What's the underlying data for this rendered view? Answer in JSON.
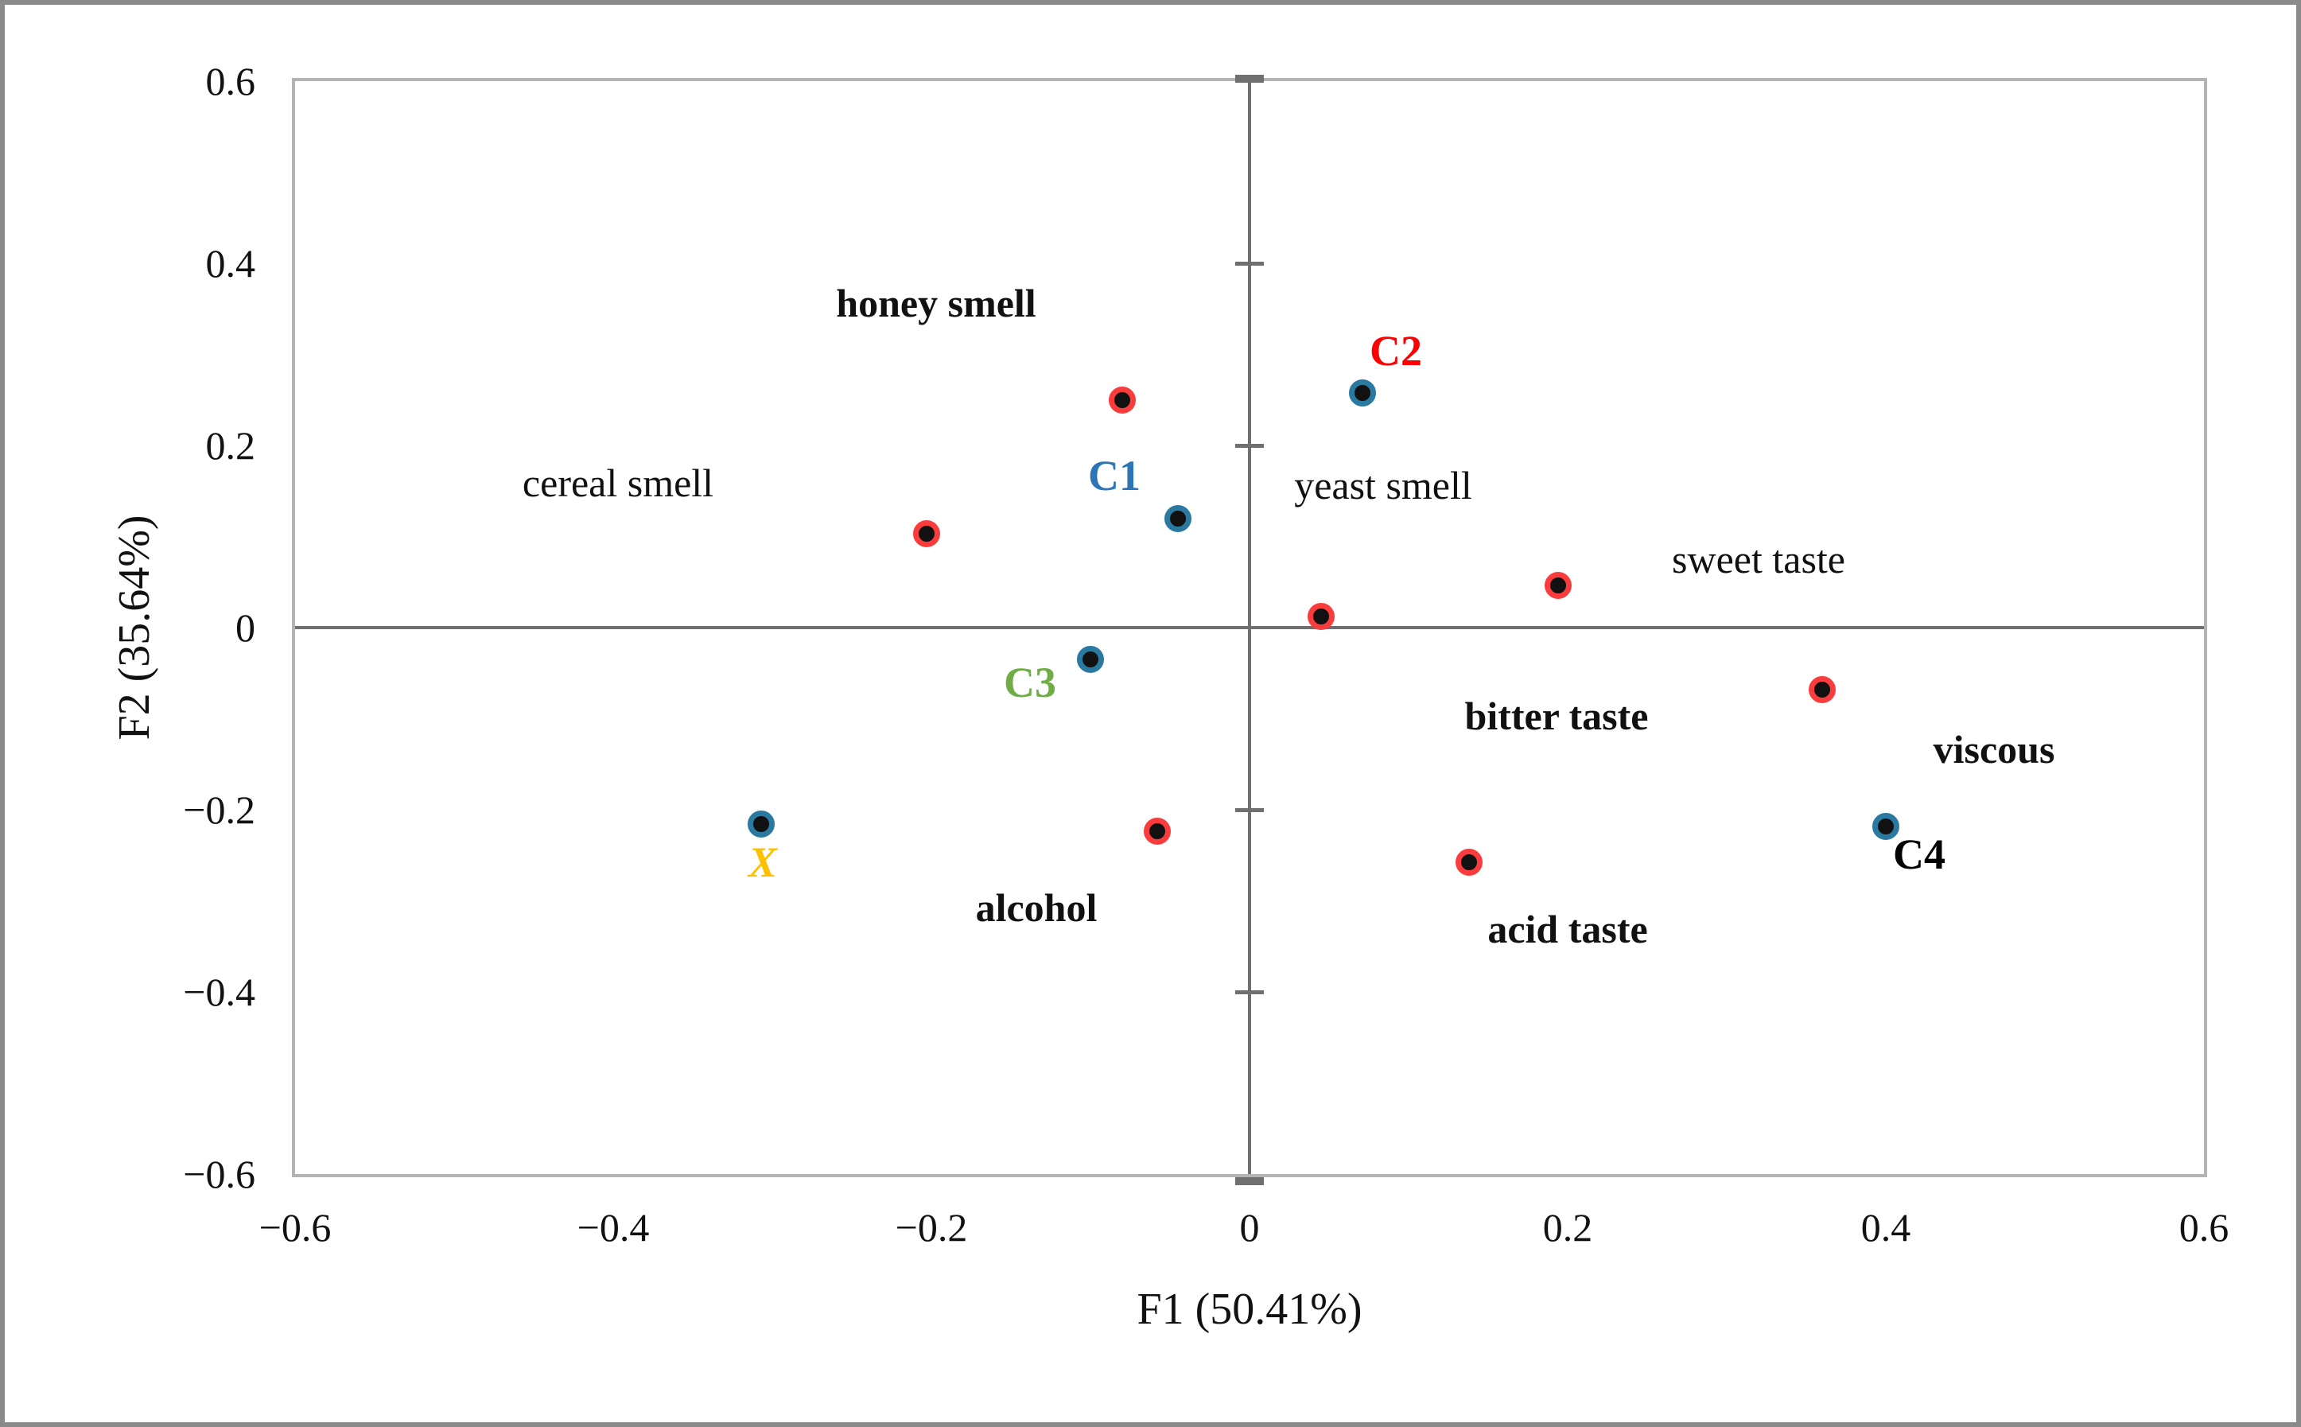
{
  "chart_data": {
    "type": "scatter",
    "title": "",
    "xlabel": "F1 (50.41%)",
    "ylabel": "F2 (35.64%)",
    "xlim": [
      -0.6,
      0.6
    ],
    "ylim": [
      -0.6,
      0.6
    ],
    "grid": false,
    "legend": false,
    "x_ticks": [
      {
        "v": -0.6,
        "label": "−0.6"
      },
      {
        "v": -0.4,
        "label": "−0.4"
      },
      {
        "v": -0.2,
        "label": "−0.2"
      },
      {
        "v": 0,
        "label": "0"
      },
      {
        "v": 0.2,
        "label": "0.2"
      },
      {
        "v": 0.4,
        "label": "0.4"
      },
      {
        "v": 0.6,
        "label": "0.6"
      }
    ],
    "y_ticks": [
      {
        "v": 0.6,
        "label": "0.6"
      },
      {
        "v": 0.4,
        "label": "0.4"
      },
      {
        "v": 0.2,
        "label": "0.2"
      },
      {
        "v": 0,
        "label": "0"
      },
      {
        "v": -0.2,
        "label": "−0.2"
      },
      {
        "v": -0.4,
        "label": "−0.4"
      },
      {
        "v": -0.6,
        "label": "−0.6"
      }
    ],
    "axis_inner_ticks_y": [
      0.4,
      0.2,
      -0.2,
      -0.4
    ],
    "frame_ticks_x": [
      0
    ],
    "attributes": [
      {
        "label": "honey smell",
        "bold": true,
        "x": -0.08,
        "y": 0.25,
        "label_x": -0.197,
        "label_y": 0.356
      },
      {
        "label": "cereal smell",
        "bold": false,
        "x": -0.203,
        "y": 0.103,
        "label_x": -0.397,
        "label_y": 0.159
      },
      {
        "label": "yeast smell",
        "bold": false,
        "x": 0.045,
        "y": 0.012,
        "label_x": 0.084,
        "label_y": 0.156
      },
      {
        "label": "sweet taste",
        "bold": false,
        "x": 0.194,
        "y": 0.046,
        "label_x": 0.32,
        "label_y": 0.075
      },
      {
        "label": "bitter taste",
        "bold": true,
        "x": null,
        "y": null,
        "label_x": 0.193,
        "label_y": -0.097
      },
      {
        "label": "viscous",
        "bold": true,
        "x": 0.36,
        "y": -0.068,
        "label_x": 0.468,
        "label_y": -0.134
      },
      {
        "label": "acid taste",
        "bold": true,
        "x": 0.138,
        "y": -0.258,
        "label_x": 0.2,
        "label_y": -0.331
      },
      {
        "label": "alcohol",
        "bold": true,
        "x": -0.058,
        "y": -0.224,
        "label_x": -0.134,
        "label_y": -0.307
      }
    ],
    "samples": [
      {
        "label": "C1",
        "x": -0.045,
        "y": 0.12,
        "label_x": -0.085,
        "label_y": 0.167,
        "color": "#2e75b6",
        "italic": false
      },
      {
        "label": "C2",
        "x": 0.071,
        "y": 0.258,
        "label_x": 0.092,
        "label_y": 0.304,
        "color": "#ff0000",
        "italic": false
      },
      {
        "label": "C3",
        "x": -0.1,
        "y": -0.035,
        "label_x": -0.138,
        "label_y": -0.06,
        "color": "#70ad47",
        "italic": false
      },
      {
        "label": "C4",
        "x": 0.4,
        "y": -0.218,
        "label_x": 0.421,
        "label_y": -0.249,
        "color": "#000000",
        "italic": false
      },
      {
        "label": "X",
        "x": -0.307,
        "y": -0.216,
        "label_x": -0.306,
        "label_y": -0.258,
        "color": "#ffc000",
        "italic": true
      }
    ],
    "colors": {
      "attribute_ring": "#fa3c3c",
      "sample_ring": "#2979a1",
      "point_core": "#111111",
      "axis_line": "#6f6f6f",
      "plot_frame": "#b3b3b3",
      "figure_border": "#8a8a8a",
      "text": "#111111",
      "c1_label": "#2e75b6",
      "c2_label": "#ff0000",
      "c3_label": "#70ad47",
      "c4_label": "#000000",
      "x_label": "#ffc000"
    }
  }
}
